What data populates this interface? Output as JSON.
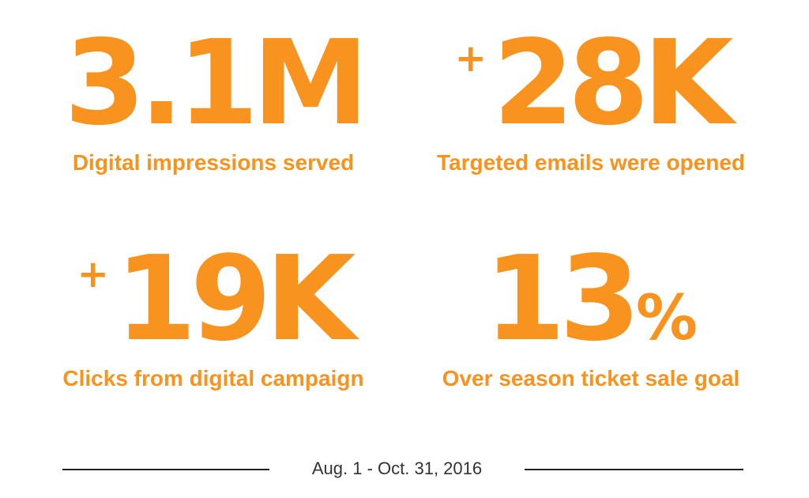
{
  "stats": [
    {
      "prefix": "",
      "value": "3.1M",
      "suffix": "",
      "caption": "Digital impressions served"
    },
    {
      "prefix": "+",
      "value": "28K",
      "suffix": "",
      "caption": "Targeted emails were opened"
    },
    {
      "prefix": "+",
      "value": "19K",
      "suffix": "",
      "caption": "Clicks from digital campaign"
    },
    {
      "prefix": "",
      "value": "13",
      "suffix": "%",
      "caption": "Over season ticket sale goal"
    }
  ],
  "footer": {
    "date_range": "Aug. 1 - Oct. 31, 2016"
  },
  "colors": {
    "accent": "#f7931e",
    "text": "#333333",
    "rule": "#222222",
    "background": "#ffffff"
  }
}
